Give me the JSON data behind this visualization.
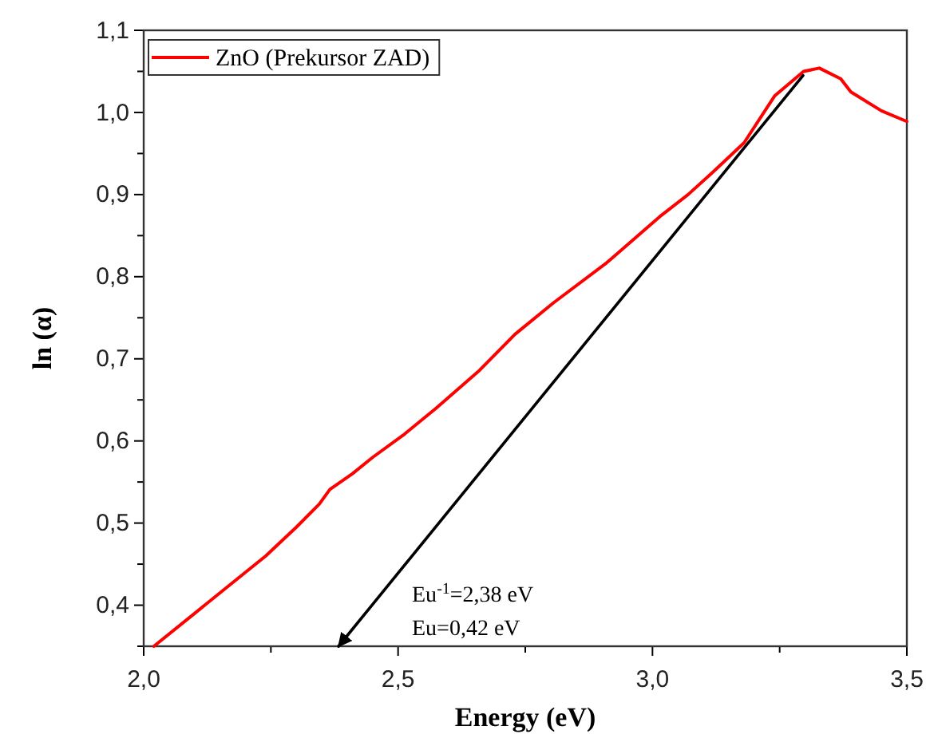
{
  "chart_data": {
    "type": "line",
    "xlabel": "Energy (eV)",
    "ylabel": "ln (α)",
    "xlim": [
      2.0,
      3.5
    ],
    "ylim": [
      0.35,
      1.1
    ],
    "xticks": [
      {
        "value": 2.0,
        "label": "2,0"
      },
      {
        "value": 2.25,
        "label": null
      },
      {
        "value": 2.5,
        "label": "2,5"
      },
      {
        "value": 2.75,
        "label": null
      },
      {
        "value": 3.0,
        "label": "3,0"
      },
      {
        "value": 3.25,
        "label": null
      },
      {
        "value": 3.5,
        "label": "3,5"
      }
    ],
    "yticks": [
      {
        "value": 0.35,
        "label": null
      },
      {
        "value": 0.4,
        "label": "0,4"
      },
      {
        "value": 0.45,
        "label": null
      },
      {
        "value": 0.5,
        "label": "0,5"
      },
      {
        "value": 0.55,
        "label": null
      },
      {
        "value": 0.6,
        "label": "0,6"
      },
      {
        "value": 0.65,
        "label": null
      },
      {
        "value": 0.7,
        "label": "0,7"
      },
      {
        "value": 0.75,
        "label": null
      },
      {
        "value": 0.8,
        "label": "0,8"
      },
      {
        "value": 0.85,
        "label": null
      },
      {
        "value": 0.9,
        "label": "0,9"
      },
      {
        "value": 0.95,
        "label": null
      },
      {
        "value": 1.0,
        "label": "1,0"
      },
      {
        "value": 1.05,
        "label": null
      },
      {
        "value": 1.1,
        "label": "1,1"
      }
    ],
    "grid": false,
    "legend": "top left",
    "line_style": "solid",
    "marker": "none",
    "series": [
      {
        "name": "ZnO (Prekursor ZAD)",
        "color": "#ff0000",
        "x": [
          2.02,
          2.1,
          2.17,
          2.24,
          2.3,
          2.345,
          2.366,
          2.41,
          2.45,
          2.51,
          2.575,
          2.66,
          2.73,
          2.805,
          2.91,
          3.014,
          3.07,
          3.12,
          3.18,
          3.24,
          3.297,
          3.328,
          3.37,
          3.39,
          3.45,
          3.5
        ],
        "values": [
          0.35,
          0.39,
          0.425,
          0.46,
          0.495,
          0.523,
          0.541,
          0.56,
          0.58,
          0.607,
          0.64,
          0.686,
          0.73,
          0.768,
          0.817,
          0.873,
          0.9,
          0.928,
          0.963,
          1.02,
          1.05,
          1.054,
          1.041,
          1.025,
          1.002,
          0.989
        ]
      },
      {
        "type": "line",
        "color": "#000000",
        "x": [
          3.296,
          2.383
        ],
        "values": [
          1.045,
          0.35
        ]
      }
    ],
    "annotations": [
      "Eu$^{-1}$=2,38 eV",
      "Eu=0,42 eV"
    ]
  }
}
